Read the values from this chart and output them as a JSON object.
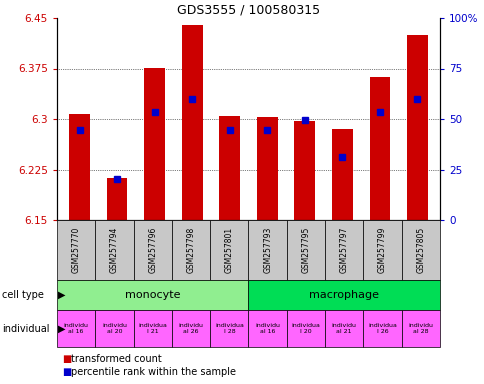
{
  "title": "GDS3555 / 100580315",
  "samples": [
    "GSM257770",
    "GSM257794",
    "GSM257796",
    "GSM257798",
    "GSM257801",
    "GSM257793",
    "GSM257795",
    "GSM257797",
    "GSM257799",
    "GSM257805"
  ],
  "red_values": [
    6.307,
    6.213,
    6.376,
    6.44,
    6.304,
    6.303,
    6.297,
    6.285,
    6.362,
    6.425
  ],
  "blue_values": [
    6.283,
    6.211,
    6.311,
    6.329,
    6.283,
    6.283,
    6.299,
    6.243,
    6.311,
    6.329
  ],
  "ymin": 6.15,
  "ymax": 6.45,
  "yticks": [
    6.15,
    6.225,
    6.3,
    6.375,
    6.45
  ],
  "ytick_labels": [
    "6.15",
    "6.225",
    "6.3",
    "6.375",
    "6.45"
  ],
  "right_yticks": [
    0,
    25,
    50,
    75,
    100
  ],
  "right_ytick_labels": [
    "0",
    "25",
    "50",
    "75",
    "100%"
  ],
  "cell_types": [
    {
      "label": "monocyte",
      "start": 0,
      "end": 5,
      "color": "#90ee90"
    },
    {
      "label": "macrophage",
      "start": 5,
      "end": 10,
      "color": "#00dd55"
    }
  ],
  "individuals": [
    "individu\nal 16",
    "individu\nal 20",
    "individua\nl 21",
    "individu\nal 26",
    "individua\nl 28",
    "individu\nal 16",
    "individua\nl 20",
    "individu\nal 21",
    "individua\nl 26",
    "individu\nal 28"
  ],
  "ind_color": "#ff66ff",
  "bar_color_red": "#cc0000",
  "bar_color_blue": "#0000cc",
  "legend_red": "transformed count",
  "legend_blue": "percentile rank within the sample",
  "label_cell_type": "cell type",
  "label_individual": "individual",
  "tick_label_color_left": "#cc0000",
  "tick_label_color_right": "#0000cc",
  "gray_box": "#c8c8c8"
}
